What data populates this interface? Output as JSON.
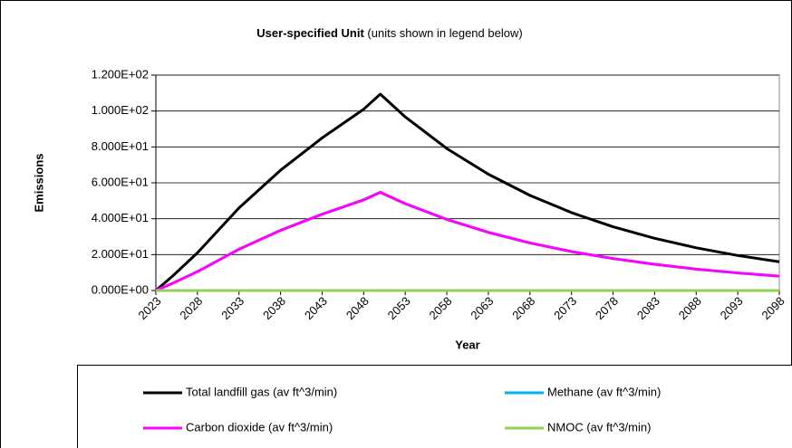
{
  "chart_data": {
    "type": "line",
    "title": "User-specified Unit",
    "subtitle": "(units shown in legend below)",
    "x_label": "Year",
    "y_label": "Emissions",
    "x": [
      2023,
      2025,
      2028,
      2030,
      2033,
      2038,
      2043,
      2048,
      2050,
      2053,
      2058,
      2063,
      2068,
      2073,
      2078,
      2083,
      2088,
      2093,
      2098
    ],
    "series": [
      {
        "name": "Total landfill gas (av ft^3/min)",
        "color": "#000000",
        "values": [
          0,
          8,
          21,
          31,
          46,
          67,
          85,
          101,
          109.4,
          96.7,
          79.1,
          64.8,
          53.0,
          43.4,
          35.5,
          29.1,
          23.8,
          19.5,
          16.0
        ]
      },
      {
        "name": "Methane (av ft^3/min)",
        "color": "#00b0f0",
        "values": [
          0,
          4,
          10.5,
          15.5,
          23,
          33.5,
          42.5,
          50.5,
          54.7,
          48.4,
          39.6,
          32.4,
          26.5,
          21.7,
          17.8,
          14.6,
          11.9,
          9.8,
          8.0
        ]
      },
      {
        "name": "Carbon dioxide (av ft^3/min)",
        "color": "#ff00ff",
        "values": [
          0,
          4,
          10.5,
          15.5,
          23,
          33.5,
          42.5,
          50.5,
          54.7,
          48.4,
          39.6,
          32.4,
          26.5,
          21.7,
          17.8,
          14.6,
          11.9,
          9.8,
          8.0
        ]
      },
      {
        "name": "NMOC (av ft^3/min)",
        "color": "#92d050",
        "values": [
          0,
          0,
          0,
          0,
          0,
          0,
          0,
          0,
          0,
          0,
          0,
          0,
          0,
          0,
          0,
          0,
          0,
          0,
          0
        ]
      }
    ],
    "xlim": [
      2023,
      2098
    ],
    "xticks": [
      2023,
      2028,
      2033,
      2038,
      2043,
      2048,
      2053,
      2058,
      2063,
      2068,
      2073,
      2078,
      2083,
      2088,
      2093,
      2098
    ],
    "ylim": [
      0,
      120
    ],
    "yticks": [
      {
        "value": 0,
        "label": "0.000E+00"
      },
      {
        "value": 20,
        "label": "2.000E+01"
      },
      {
        "value": 40,
        "label": "4.000E+01"
      },
      {
        "value": 60,
        "label": "6.000E+01"
      },
      {
        "value": 80,
        "label": "8.000E+01"
      },
      {
        "value": 100,
        "label": "1.000E+02"
      },
      {
        "value": 120,
        "label": "1.200E+02"
      }
    ],
    "grid": true
  }
}
